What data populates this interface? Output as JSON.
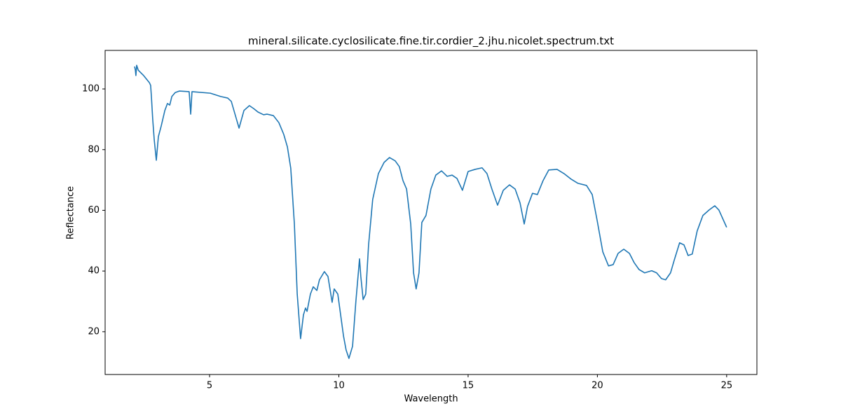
{
  "chart_data": {
    "type": "line",
    "title": "mineral.silicate.cyclosilicate.fine.tir.cordier_2.jhu.nicolet.spectrum.txt",
    "x_label": "Wavelength",
    "y_label": "Reflectance",
    "xlim": [
      0.96,
      26.17
    ],
    "ylim": [
      5.9,
      112.7
    ],
    "xticks": [
      5,
      10,
      15,
      20,
      25
    ],
    "yticks": [
      20,
      40,
      60,
      80,
      100
    ],
    "series": [
      {
        "color": "#1f77b4",
        "x": [
          2.1,
          2.13,
          2.15,
          2.18,
          2.24,
          2.45,
          2.67,
          2.72,
          2.75,
          2.8,
          2.86,
          2.94,
          3.02,
          3.13,
          3.27,
          3.37,
          3.46,
          3.54,
          3.67,
          3.83,
          4.21,
          4.27,
          4.32,
          5.03,
          5.43,
          5.7,
          5.84,
          6.0,
          6.14,
          6.33,
          6.54,
          6.71,
          6.87,
          7.09,
          7.22,
          7.47,
          7.68,
          7.87,
          8.01,
          8.14,
          8.28,
          8.39,
          8.52,
          8.63,
          8.71,
          8.77,
          8.9,
          9.01,
          9.15,
          9.25,
          9.44,
          9.58,
          9.74,
          9.82,
          9.96,
          10.07,
          10.18,
          10.28,
          10.39,
          10.53,
          10.66,
          10.8,
          10.85,
          10.94,
          11.04,
          11.15,
          11.31,
          11.53,
          11.75,
          11.96,
          12.18,
          12.34,
          12.48,
          12.62,
          12.78,
          12.89,
          12.99,
          13.1,
          13.21,
          13.37,
          13.56,
          13.75,
          13.97,
          14.19,
          14.38,
          14.57,
          14.78,
          15.0,
          15.27,
          15.54,
          15.73,
          15.92,
          16.14,
          16.36,
          16.6,
          16.82,
          17.01,
          17.17,
          17.3,
          17.49,
          17.68,
          17.9,
          18.12,
          18.44,
          18.71,
          18.98,
          19.25,
          19.58,
          19.8,
          19.99,
          20.21,
          20.43,
          20.61,
          20.8,
          21.02,
          21.24,
          21.42,
          21.61,
          21.83,
          22.1,
          22.29,
          22.48,
          22.64,
          22.83,
          22.97,
          23.18,
          23.35,
          23.51,
          23.67,
          23.86,
          24.08,
          24.32,
          24.54,
          24.7,
          25.0
        ],
        "values": [
          107.4,
          106.2,
          104.4,
          107.8,
          106.2,
          104.4,
          102.1,
          101.2,
          97.5,
          90.1,
          83.2,
          76.5,
          84.3,
          87.8,
          92.9,
          95.2,
          94.7,
          97.5,
          98.8,
          99.3,
          99.1,
          91.7,
          99.1,
          98.6,
          97.5,
          97.0,
          95.9,
          91.2,
          87.1,
          92.9,
          94.5,
          93.5,
          92.4,
          91.5,
          91.7,
          91.2,
          88.9,
          85.0,
          80.9,
          73.9,
          55.5,
          32.4,
          17.7,
          25.5,
          27.8,
          26.7,
          32.4,
          34.8,
          33.6,
          37.1,
          39.8,
          38.2,
          29.7,
          34.1,
          32.4,
          25.5,
          18.6,
          14.0,
          11.2,
          15.2,
          30.1,
          44.0,
          38.2,
          30.6,
          32.4,
          48.6,
          63.6,
          72.1,
          75.8,
          77.4,
          76.3,
          74.4,
          69.8,
          67.0,
          55.5,
          39.4,
          34.1,
          39.4,
          56.0,
          58.3,
          67.0,
          71.6,
          73.0,
          71.2,
          71.6,
          70.5,
          66.6,
          72.8,
          73.5,
          74.0,
          72.1,
          67.0,
          61.7,
          66.6,
          68.4,
          67.0,
          62.4,
          55.5,
          61.3,
          65.6,
          65.2,
          69.8,
          73.3,
          73.5,
          72.1,
          70.3,
          68.9,
          68.2,
          65.2,
          56.7,
          46.3,
          41.7,
          42.1,
          45.8,
          47.2,
          45.8,
          42.8,
          40.5,
          39.4,
          40.1,
          39.4,
          37.5,
          37.1,
          39.4,
          43.5,
          49.3,
          48.6,
          45.1,
          45.6,
          53.2,
          58.3,
          60.1,
          61.5,
          60.1,
          54.4
        ]
      }
    ]
  }
}
